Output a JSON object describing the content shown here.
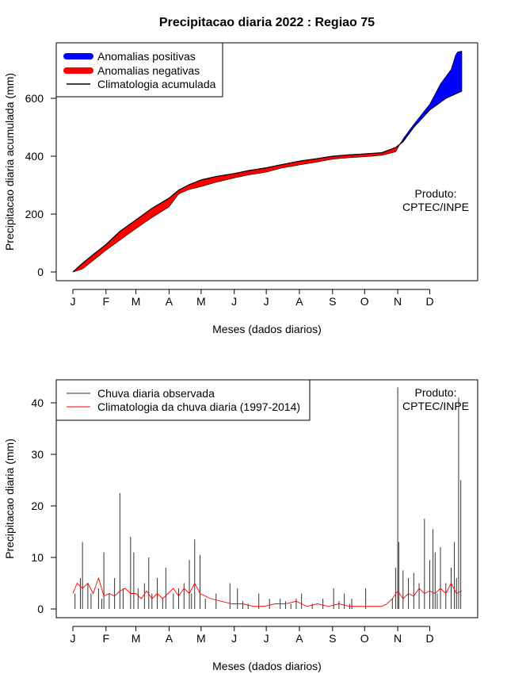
{
  "colors": {
    "positive": "#0000ff",
    "negative": "#ff0000",
    "climatology_cumulative": "#000000",
    "observed_daily": "#333333",
    "climatology_daily": "#ff0000"
  },
  "chart_data": [
    {
      "type": "area",
      "title": "Precipitacao diaria 2022 : Regiao 75",
      "xlabel": "Meses (dados diarios)",
      "ylabel": "Precipitacao diaria acumulada (mm)",
      "ylim": [
        0,
        770
      ],
      "yticks": [
        0,
        200,
        400,
        600
      ],
      "month_ticks": [
        "J",
        "F",
        "M",
        "A",
        "M",
        "J",
        "J",
        "A",
        "S",
        "O",
        "N",
        "D"
      ],
      "month_days": [
        1,
        32,
        60,
        91,
        121,
        152,
        182,
        213,
        244,
        274,
        305,
        335
      ],
      "xlim": [
        1,
        365
      ],
      "grid": false,
      "legend_position": "top-left",
      "legend": [
        "Anomalias positivas",
        "Anomalias negativas",
        "Climatologia acumulada"
      ],
      "annotation": [
        "Produto:",
        "CPTEC/INPE"
      ],
      "series": [
        {
          "name": "Climatologia acumulada",
          "x": [
            1,
            10,
            20,
            32,
            45,
            60,
            75,
            91,
            100,
            110,
            121,
            135,
            152,
            165,
            182,
            195,
            213,
            230,
            244,
            260,
            274,
            290,
            303,
            310,
            320,
            335,
            350,
            365
          ],
          "values": [
            0,
            30,
            60,
            95,
            140,
            180,
            220,
            255,
            283,
            302,
            318,
            330,
            340,
            350,
            360,
            370,
            383,
            392,
            400,
            405,
            408,
            412,
            430,
            450,
            500,
            560,
            600,
            625
          ]
        },
        {
          "name": "Precipitacao acumulada observada",
          "x": [
            1,
            10,
            20,
            32,
            45,
            60,
            75,
            91,
            100,
            110,
            121,
            135,
            152,
            165,
            182,
            195,
            213,
            230,
            244,
            260,
            274,
            290,
            303,
            310,
            320,
            335,
            345,
            355,
            360,
            365
          ],
          "values": [
            0,
            10,
            40,
            75,
            110,
            150,
            188,
            225,
            270,
            285,
            295,
            310,
            325,
            335,
            345,
            358,
            370,
            380,
            390,
            395,
            398,
            403,
            415,
            460,
            510,
            580,
            650,
            700,
            760,
            763
          ]
        }
      ]
    },
    {
      "type": "bar",
      "title": "",
      "xlabel": "Meses (dados diarios)",
      "ylabel": "Precipitacao diaria (mm)",
      "ylim": [
        0,
        45
      ],
      "yticks": [
        0,
        10,
        20,
        30,
        40
      ],
      "month_ticks": [
        "J",
        "F",
        "M",
        "A",
        "M",
        "J",
        "J",
        "A",
        "S",
        "O",
        "N",
        "D"
      ],
      "month_days": [
        1,
        32,
        60,
        91,
        121,
        152,
        182,
        213,
        244,
        274,
        305,
        335
      ],
      "xlim": [
        1,
        365
      ],
      "grid": false,
      "legend_position": "top-left",
      "legend": [
        "Chuva diaria observada",
        "Climatologia da chuva diaria (1997-2014)"
      ],
      "annotation": [
        "Produto:",
        "CPTEC/INPE"
      ],
      "series": [
        {
          "name": "Chuva diaria observada",
          "x": [
            3,
            8,
            10,
            15,
            18,
            25,
            28,
            30,
            35,
            40,
            45,
            48,
            55,
            58,
            62,
            68,
            72,
            75,
            80,
            85,
            88,
            95,
            100,
            105,
            110,
            112,
            115,
            120,
            125,
            135,
            148,
            155,
            160,
            165,
            175,
            185,
            195,
            200,
            205,
            210,
            215,
            225,
            235,
            245,
            250,
            255,
            260,
            262,
            275,
            300,
            303,
            305,
            306,
            310,
            315,
            320,
            325,
            330,
            335,
            338,
            340,
            342,
            345,
            350,
            355,
            358,
            360,
            362,
            364
          ],
          "values": [
            3,
            6,
            13,
            5,
            3,
            4,
            2,
            11,
            3,
            6,
            22.5,
            4,
            14,
            11,
            4,
            5,
            10,
            3,
            6,
            2,
            8,
            3,
            4,
            5,
            9.5,
            3,
            13.5,
            10.5,
            2,
            3,
            5,
            4,
            1.5,
            1,
            3,
            2,
            2,
            1.5,
            1,
            2,
            3,
            1,
            2,
            4,
            1.5,
            3,
            1,
            2,
            4,
            2,
            8,
            43,
            13,
            7.5,
            6,
            7,
            5,
            17.5,
            9.5,
            15.5,
            11,
            3,
            12,
            5,
            8,
            13,
            6,
            41,
            25
          ]
        },
        {
          "name": "Climatologia da chuva diaria (1997-2014)",
          "x": [
            1,
            5,
            10,
            15,
            20,
            25,
            30,
            35,
            40,
            45,
            50,
            55,
            60,
            65,
            70,
            75,
            80,
            85,
            90,
            95,
            100,
            105,
            110,
            115,
            120,
            130,
            140,
            150,
            160,
            170,
            180,
            190,
            200,
            210,
            220,
            230,
            240,
            250,
            260,
            270,
            280,
            290,
            295,
            300,
            305,
            310,
            315,
            320,
            325,
            330,
            335,
            340,
            345,
            350,
            355,
            360,
            365
          ],
          "values": [
            3,
            5,
            4,
            5,
            3,
            6,
            2.5,
            3,
            2.5,
            3.5,
            4,
            3,
            3,
            2,
            3.5,
            2,
            3,
            2,
            3,
            4,
            2.5,
            4,
            3,
            5,
            3,
            2,
            1.5,
            1,
            1,
            0.5,
            0.5,
            1,
            1,
            1.5,
            0.5,
            1,
            0.5,
            1,
            0.5,
            0.5,
            0.5,
            0.5,
            1,
            2,
            3.5,
            2,
            3,
            2.5,
            4,
            3,
            3.5,
            3,
            4,
            3,
            5,
            3,
            3.5
          ]
        }
      ]
    }
  ]
}
